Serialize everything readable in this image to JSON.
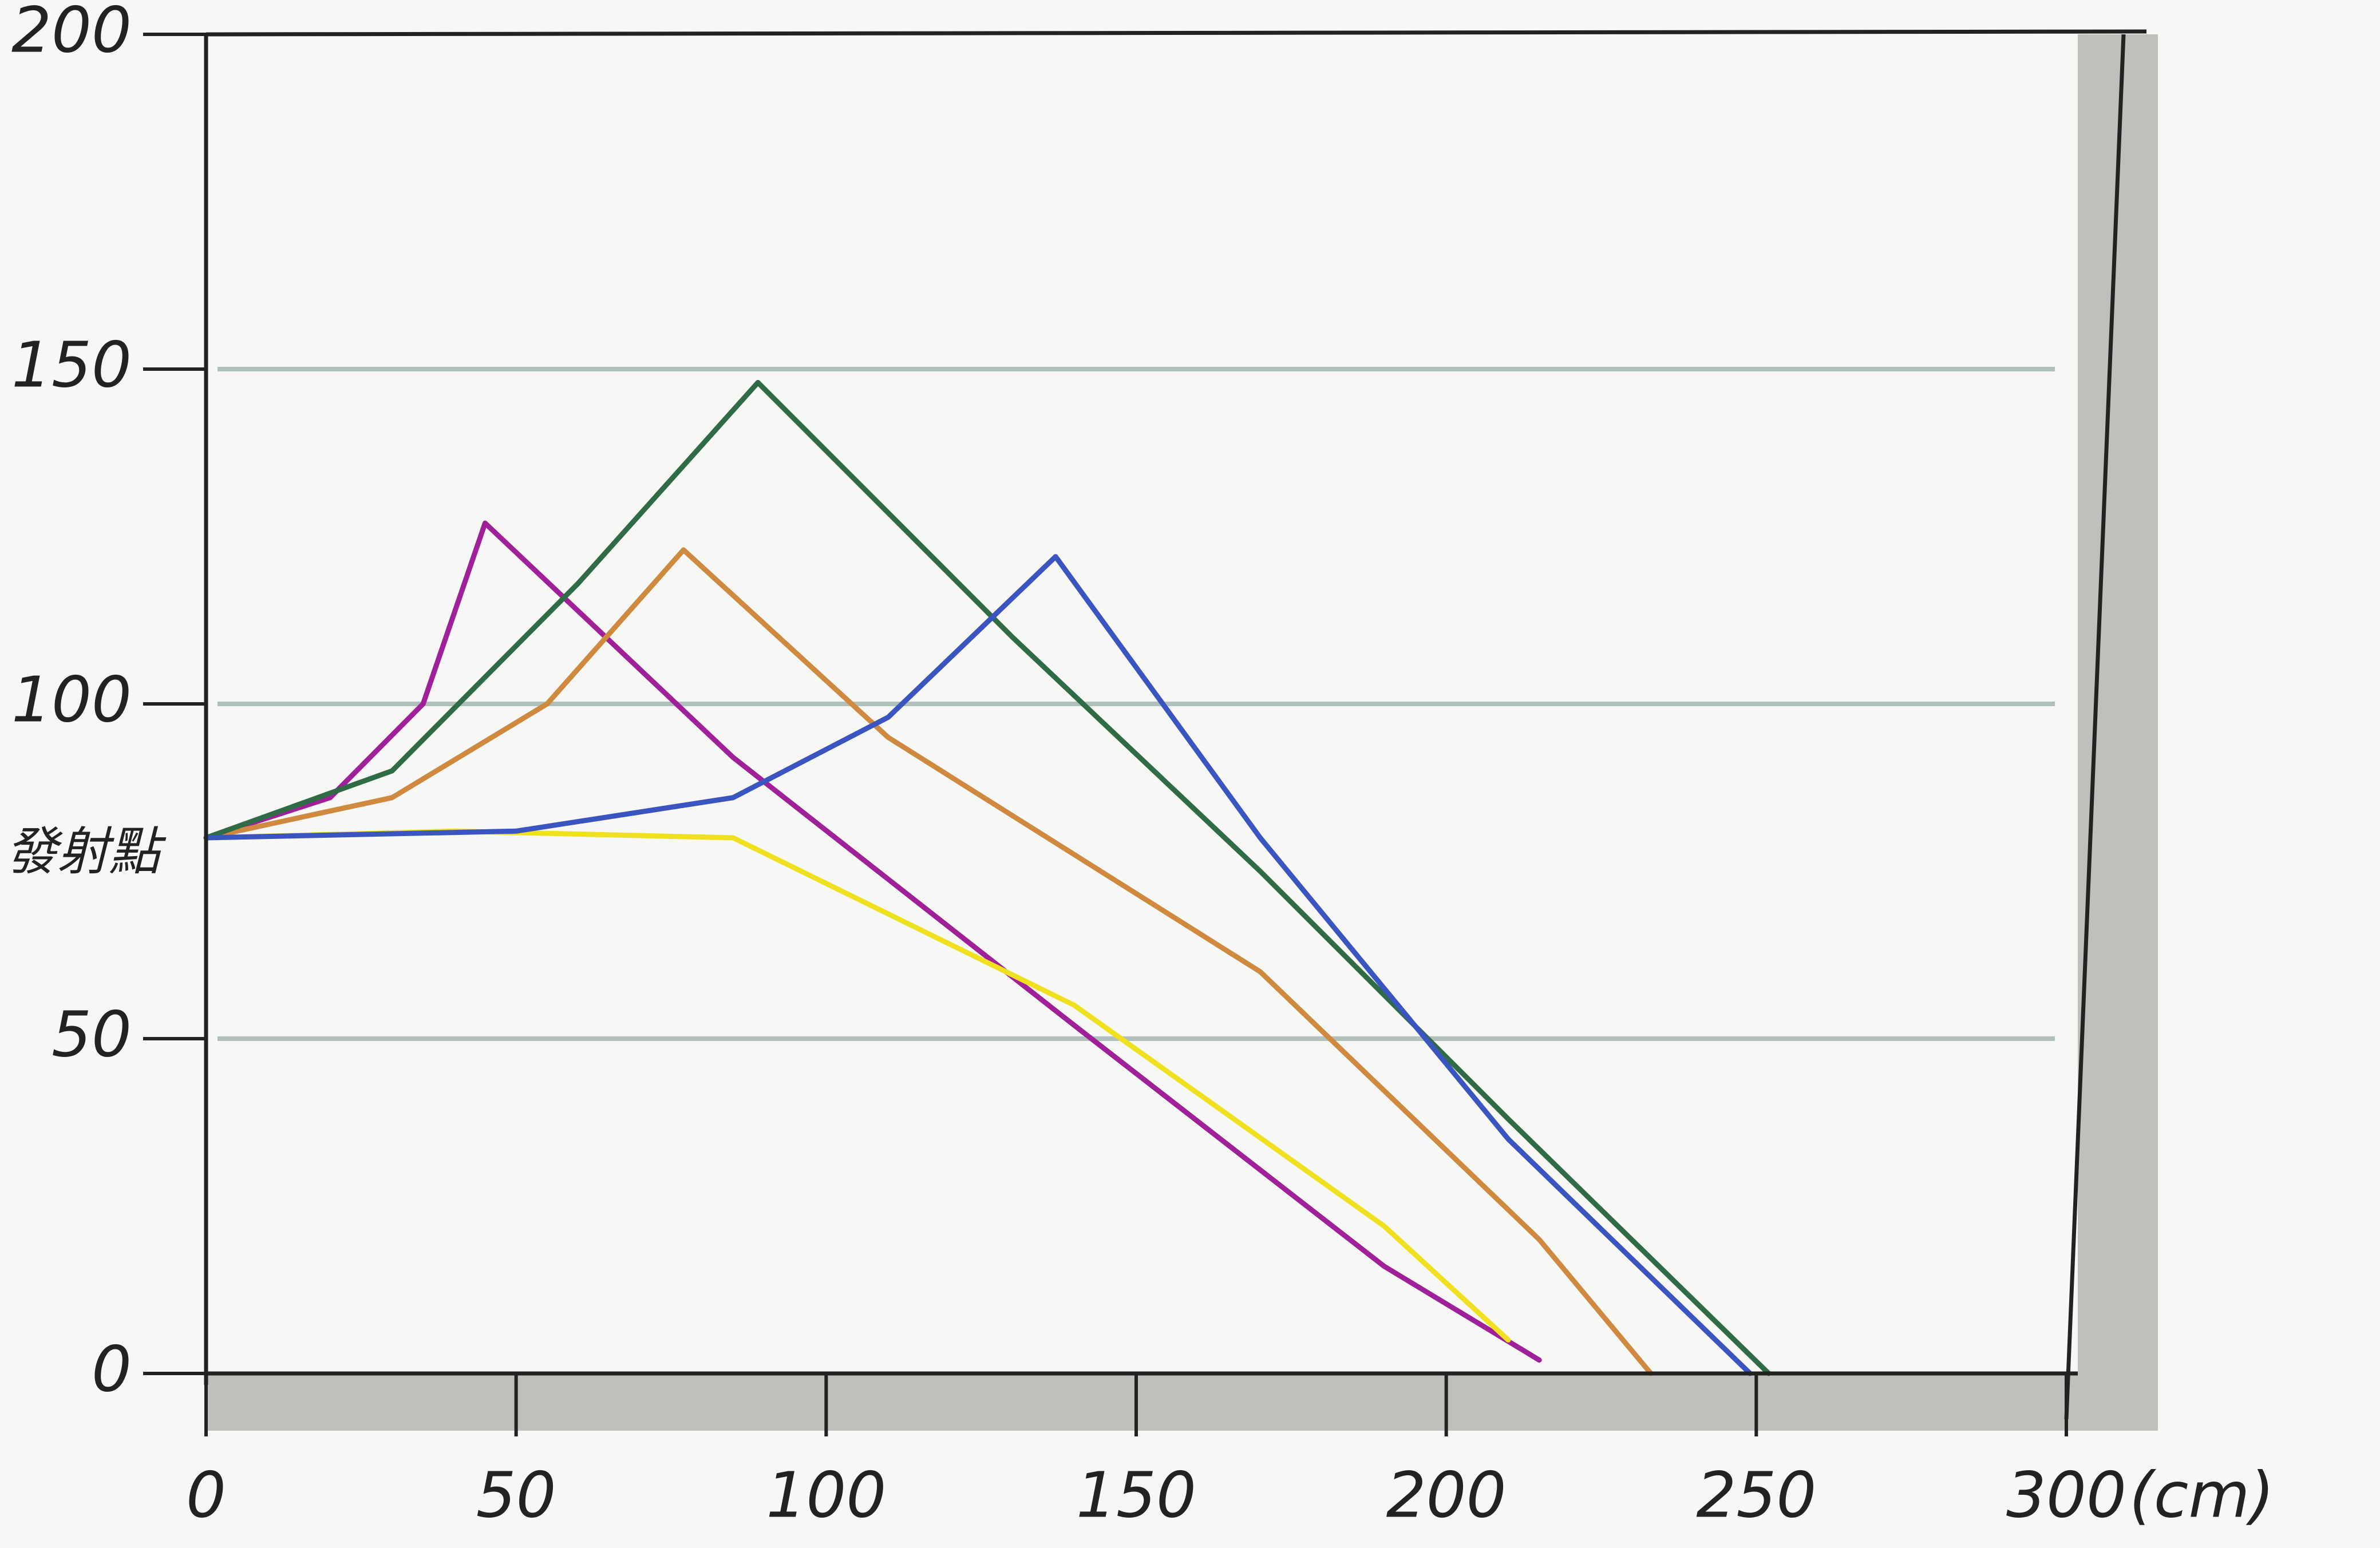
{
  "chart_data": {
    "type": "line",
    "x_label": "(cm)",
    "annotations": [
      "發射點"
    ],
    "xlim": [
      0,
      300
    ],
    "xticks": [
      0,
      50,
      100,
      150,
      200,
      250,
      300
    ],
    "ylim": [
      0,
      200
    ],
    "yticks": [
      0,
      50,
      100,
      150,
      200
    ],
    "grid": true,
    "series": [
      {
        "color": "#a0209a",
        "x": [
          0,
          20,
          35,
          45,
          85,
          140,
          190,
          215
        ],
        "values": [
          80,
          86,
          100,
          127,
          92,
          52,
          16,
          2
        ]
      },
      {
        "color": "#efe020",
        "x": [
          0,
          40,
          85,
          140,
          190,
          210
        ],
        "values": [
          80,
          81,
          80,
          55,
          22,
          5
        ]
      },
      {
        "color": "#d08a40",
        "x": [
          0,
          30,
          55,
          77,
          110,
          170,
          215,
          233
        ],
        "values": [
          80,
          86,
          100,
          123,
          95,
          60,
          20,
          0
        ]
      },
      {
        "color": "#2f6b45",
        "x": [
          0,
          30,
          60,
          89,
          130,
          170,
          210,
          252
        ],
        "values": [
          80,
          90,
          118,
          148,
          110,
          75,
          38,
          0
        ]
      },
      {
        "color": "#3a55c0",
        "x": [
          0,
          50,
          85,
          110,
          137,
          170,
          210,
          249
        ],
        "values": [
          80,
          81,
          86,
          98,
          122,
          80,
          35,
          0
        ]
      }
    ]
  }
}
